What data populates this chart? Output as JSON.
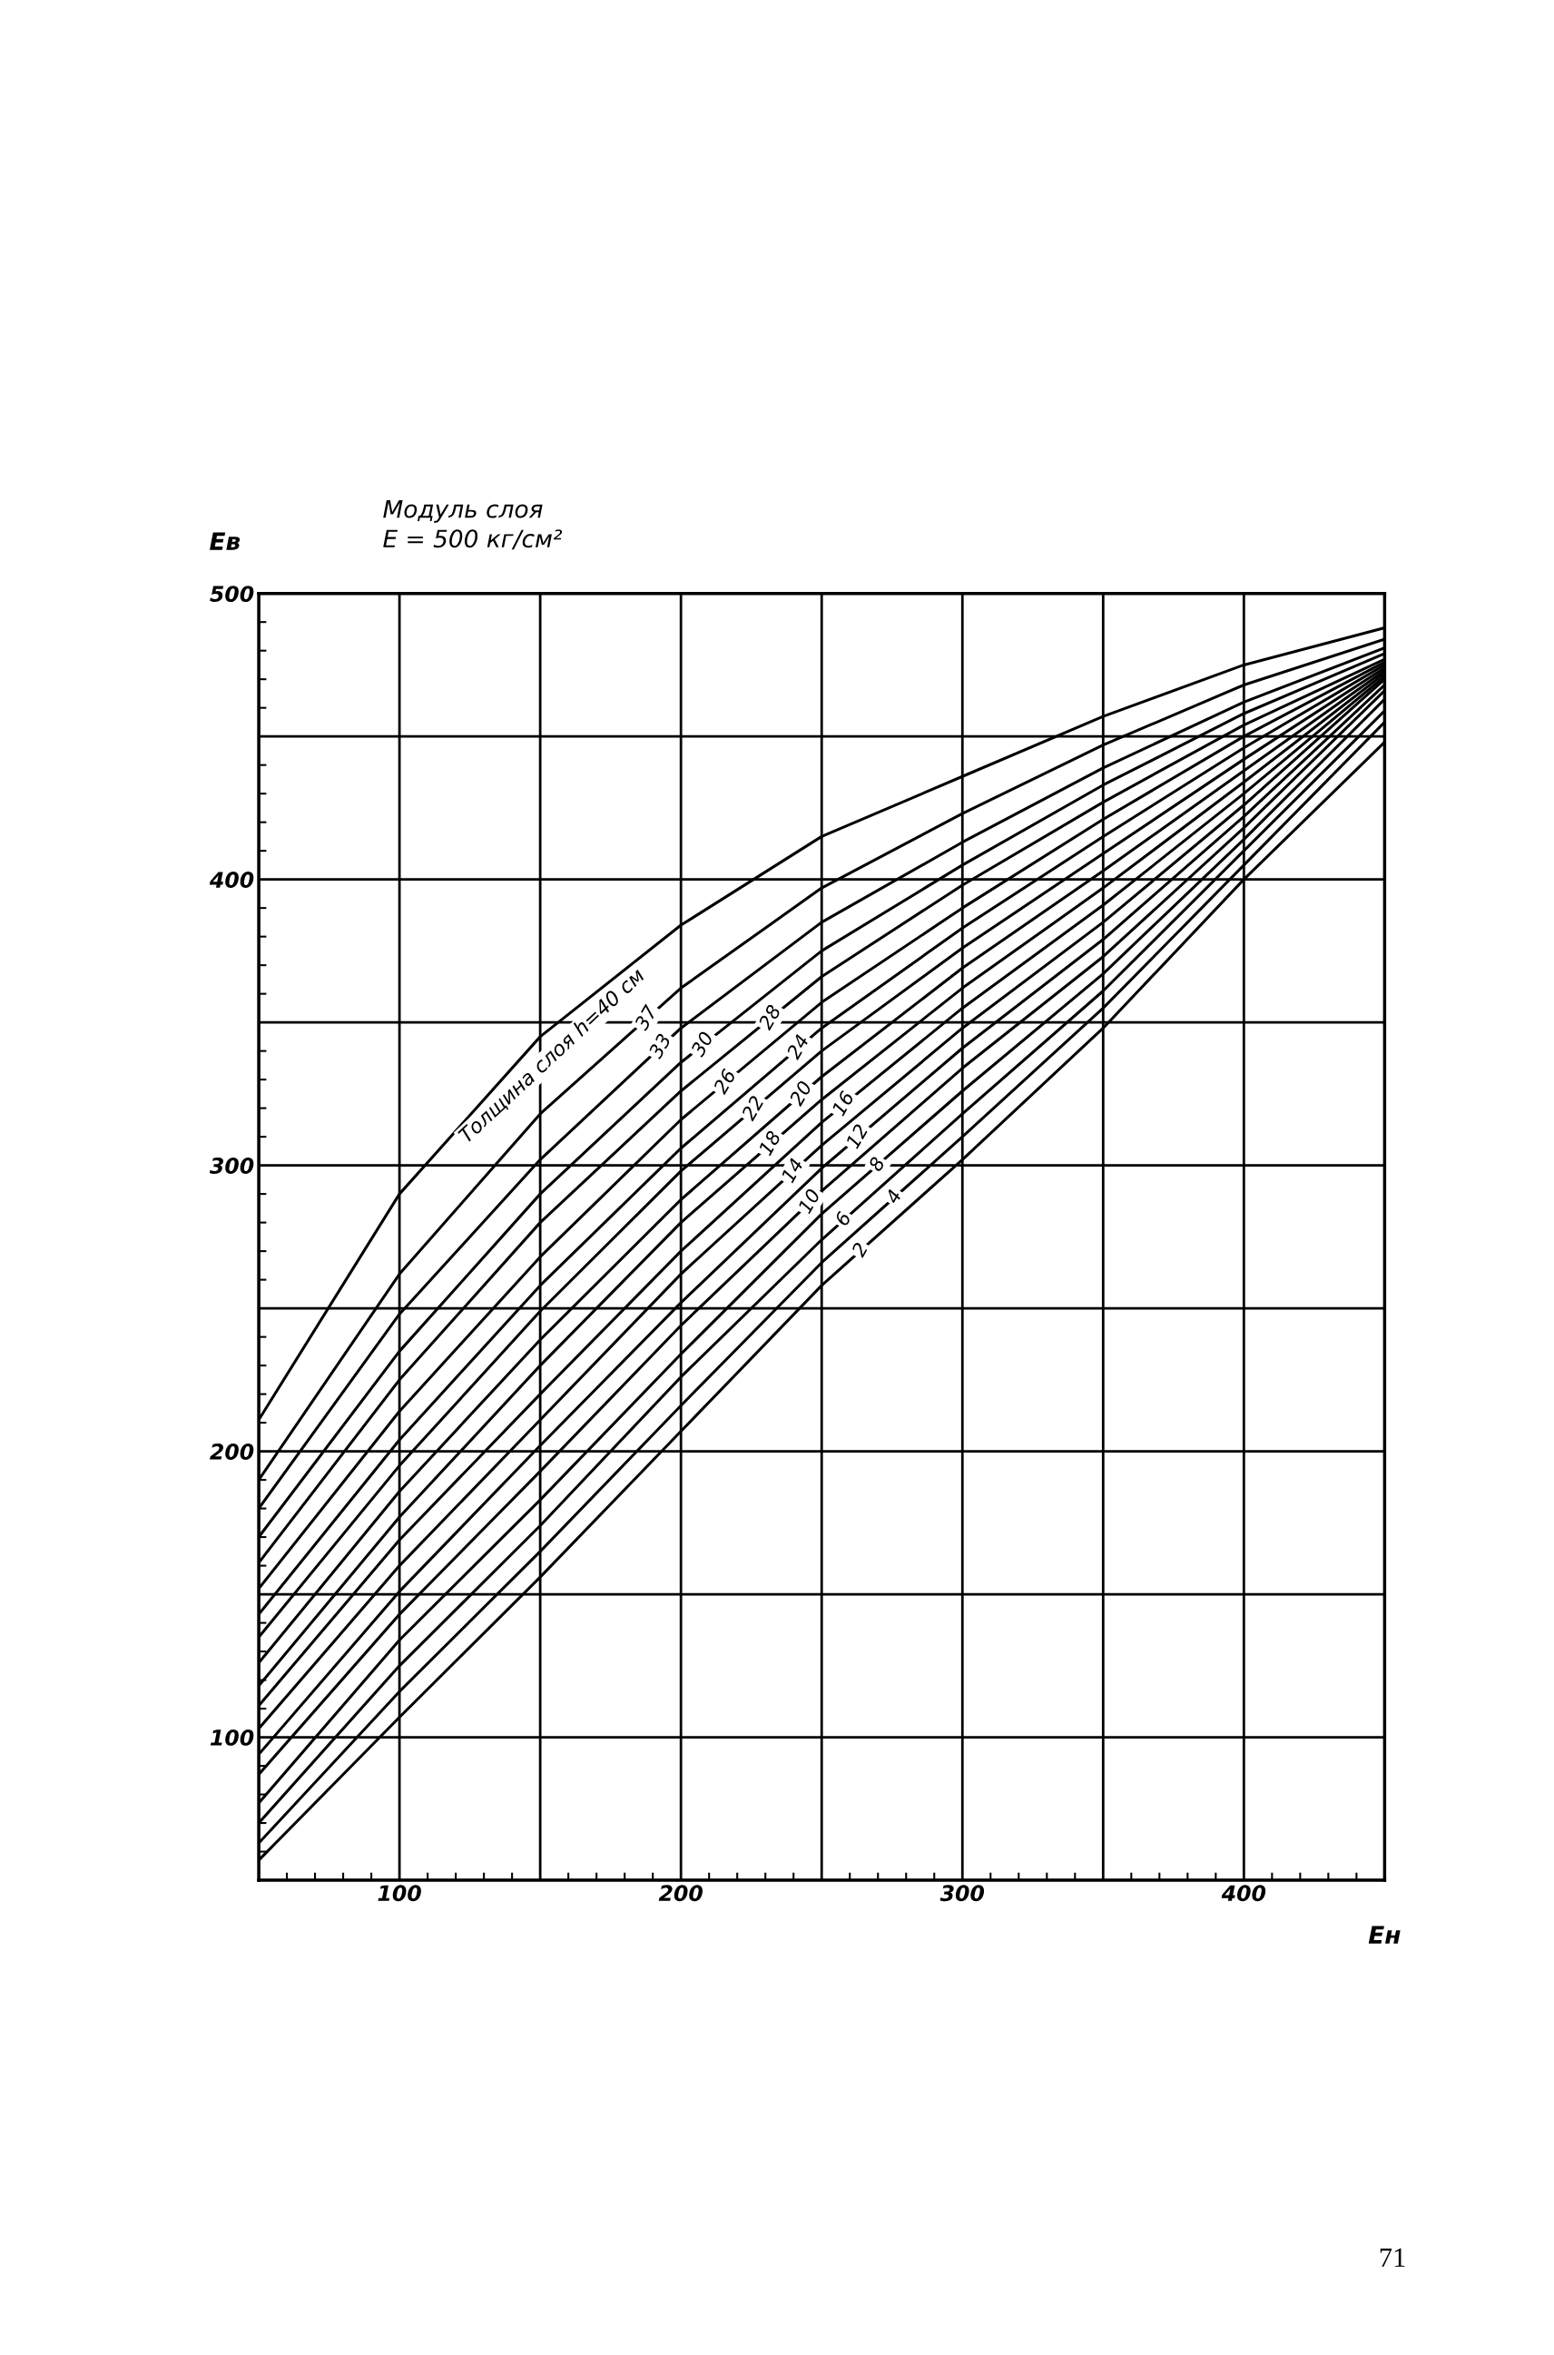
{
  "chart_data": {
    "type": "line",
    "title": "Модуль слоя",
    "subtitle": "E = 500 кг/см²",
    "xlabel": "Eн",
    "ylabel": "Eв",
    "x": [
      50,
      100,
      150,
      200,
      250,
      300,
      350,
      400,
      450
    ],
    "xlim": [
      50,
      450
    ],
    "ylim": [
      50,
      500
    ],
    "xticks": [
      {
        "value": 50,
        "label": null
      },
      100,
      {
        "value": 150,
        "label": null
      },
      200,
      {
        "value": 250,
        "label": null
      },
      300,
      {
        "value": 350,
        "label": null
      },
      400,
      {
        "value": 450,
        "label": null
      }
    ],
    "yticks": [
      {
        "value": 50,
        "label": null
      },
      100,
      {
        "value": 150,
        "label": null
      },
      200,
      {
        "value": 250,
        "label": null
      },
      300,
      {
        "value": 350,
        "label": null
      },
      400,
      {
        "value": 450,
        "label": null
      },
      500
    ],
    "grid": true,
    "legend": false,
    "series": [
      {
        "color": "#000000",
        "values": [
          211,
          290,
          345,
          384,
          415,
          436,
          457,
          475,
          488
        ]
      },
      {
        "name": "37",
        "color": "#000000",
        "values": [
          190,
          262,
          318,
          362,
          397,
          423,
          447,
          468,
          484
        ]
      },
      {
        "name": "33",
        "color": "#000000",
        "values": [
          180,
          248,
          302,
          348,
          385,
          413,
          439,
          462,
          481
        ]
      },
      {
        "name": "30",
        "color": "#000000",
        "values": [
          170,
          235,
          290,
          336,
          375,
          405,
          433,
          458,
          479
        ]
      },
      {
        "name": "28",
        "color": "#000000",
        "values": [
          161,
          225,
          280,
          326,
          366,
          398,
          427,
          454,
          477
        ]
      },
      {
        "name": "26",
        "color": "#000000",
        "values": [
          152,
          214,
          268,
          316,
          357,
          390,
          421,
          450,
          476
        ]
      },
      {
        "name": "24",
        "color": "#000000",
        "values": [
          143,
          204,
          258,
          306,
          348,
          383,
          415,
          446,
          475
        ]
      },
      {
        "name": "22",
        "color": "#000000",
        "values": [
          135,
          195,
          249,
          298,
          340,
          376,
          409,
          442,
          474
        ]
      },
      {
        "name": "20",
        "color": "#000000",
        "values": [
          126,
          186,
          239,
          288,
          331,
          369,
          403,
          438,
          473
        ]
      },
      {
        "name": "18",
        "color": "#000000",
        "values": [
          118,
          177,
          230,
          280,
          323,
          362,
          397,
          434,
          472
        ]
      },
      {
        "name": "16",
        "color": "#000000",
        "values": [
          111,
          169,
          220,
          270,
          315,
          355,
          391,
          430,
          471
        ]
      },
      {
        "name": "14",
        "color": "#000000",
        "values": [
          103,
          160,
          211,
          262,
          307,
          348,
          385,
          426,
          470
        ]
      },
      {
        "name": "12",
        "color": "#000000",
        "values": [
          94,
          151,
          202,
          252,
          299,
          341,
          379,
          422,
          468
        ]
      },
      {
        "name": "10",
        "color": "#000000",
        "values": [
          87,
          143,
          193,
          244,
          291,
          334,
          373,
          418,
          466
        ]
      },
      {
        "name": "8",
        "color": "#000000",
        "values": [
          77,
          134,
          183,
          234,
          283,
          326,
          367,
          414,
          463
        ]
      },
      {
        "name": "6",
        "color": "#000000",
        "values": [
          70,
          125,
          174,
          226,
          274,
          318,
          361,
          410,
          459
        ]
      },
      {
        "name": "4",
        "color": "#000000",
        "values": [
          63,
          116,
          165,
          216,
          266,
          310,
          355,
          405,
          455
        ]
      },
      {
        "name": "2",
        "color": "#000000",
        "values": [
          57,
          107,
          156,
          207,
          258,
          302,
          348,
          400,
          448
        ]
      }
    ],
    "annotations": [
      "Толщина слоя h=40 см",
      "71"
    ]
  }
}
